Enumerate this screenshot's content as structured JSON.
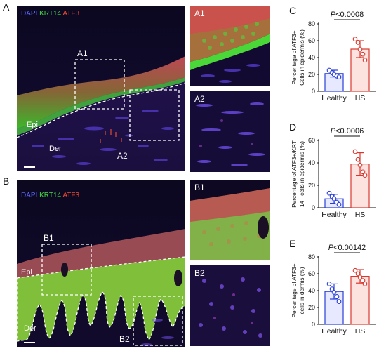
{
  "panels": {
    "A": {
      "letter": "A",
      "legend": {
        "dapi": "DAPI",
        "krt": "KRT14",
        "atf": "ATF3"
      },
      "labels": {
        "inset1": "A1",
        "inset2": "A2",
        "epi": "Epi",
        "der": "Der"
      },
      "insets": {
        "one": "A1",
        "two": "A2"
      }
    },
    "B": {
      "letter": "B",
      "legend": {
        "dapi": "DAPI",
        "krt": "KRT14",
        "atf": "ATF3"
      },
      "labels": {
        "inset1": "B1",
        "inset2": "B2",
        "epi": "Epi",
        "der": "Der"
      },
      "insets": {
        "one": "B1",
        "two": "B2"
      }
    }
  },
  "colors": {
    "dapi": "#4a55e0",
    "krt": "#3fd03f",
    "atf": "#e8402a",
    "healthy": "#2a3fd6",
    "hs": "#d9382f"
  },
  "chart_data": [
    {
      "letter": "C",
      "type": "scatter",
      "categories": [
        "Healthy",
        "HS"
      ],
      "ylabel": "Percentage of ATF3+ Cells in epidermis (%)",
      "ylabel_lines": [
        "Percentage of ATF3+",
        "Cells in epidermis (%)"
      ],
      "yticks": [
        0,
        20,
        40,
        60,
        80
      ],
      "ylim": [
        0,
        80
      ],
      "annotation": "P<0.0008",
      "series": [
        {
          "mean": 21,
          "sd": 4,
          "points": [
            25,
            22,
            20,
            18,
            17
          ]
        },
        {
          "mean": 50,
          "sd": 10,
          "points": [
            62,
            58,
            50,
            44,
            37
          ]
        }
      ]
    },
    {
      "letter": "D",
      "type": "scatter",
      "categories": [
        "Healthy",
        "HS"
      ],
      "ylabel": "Percentage of ATF3+/KRT 14+ cells in epidermis (%)",
      "ylabel_lines": [
        "Percentage of ATF3+/KRT",
        "14+ cells in epidermis (%)"
      ],
      "yticks": [
        0,
        20,
        40,
        60
      ],
      "ylim": [
        0,
        60
      ],
      "annotation": "P<0.0006",
      "series": [
        {
          "mean": 8,
          "sd": 4,
          "points": [
            13,
            10,
            8,
            5,
            3
          ]
        },
        {
          "mean": 39,
          "sd": 10,
          "points": [
            50,
            43,
            38,
            32,
            29
          ]
        }
      ]
    },
    {
      "letter": "E",
      "type": "scatter",
      "categories": [
        "Healthy",
        "HS"
      ],
      "ylabel": "Percentage of ATF3+ cells in dermis (%)",
      "ylabel_lines": [
        "Percentage of ATF3+",
        "cells in dermis (%)"
      ],
      "yticks": [
        0,
        20,
        40,
        60,
        80
      ],
      "ylim": [
        0,
        80
      ],
      "annotation": "P<0.00142",
      "series": [
        {
          "mean": 39,
          "sd": 9,
          "points": [
            48,
            42,
            38,
            33,
            27
          ]
        },
        {
          "mean": 57,
          "sd": 8,
          "points": [
            64,
            60,
            56,
            52,
            48
          ]
        }
      ]
    }
  ]
}
